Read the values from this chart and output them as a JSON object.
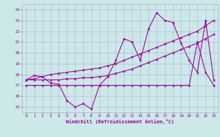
{
  "xlabel": "Windchill (Refroidissement éolien,°C)",
  "bg_color": "#cce8e8",
  "grid_color": "#aaaacc",
  "line_color": "#990099",
  "x_hours": [
    0,
    1,
    2,
    3,
    4,
    5,
    6,
    7,
    8,
    9,
    10,
    11,
    12,
    13,
    14,
    15,
    16,
    17,
    18,
    19,
    20,
    21,
    22,
    23
  ],
  "serA": [
    17.5,
    17.9,
    17.8,
    17.2,
    17.1,
    15.6,
    15.0,
    15.3,
    14.8,
    17.0,
    17.8,
    19.3,
    21.3,
    21.0,
    19.3,
    22.2,
    23.7,
    23.0,
    22.8,
    20.9,
    19.3,
    18.2,
    23.0,
    17.5
  ],
  "serB": [
    17.5,
    17.6,
    17.8,
    18.0,
    18.1,
    18.2,
    18.3,
    18.4,
    18.5,
    18.6,
    18.8,
    19.0,
    19.3,
    19.6,
    19.9,
    20.2,
    20.5,
    20.8,
    21.1,
    21.4,
    21.7,
    22.0,
    22.5,
    23.0
  ],
  "serC": [
    17.5,
    17.5,
    17.5,
    17.5,
    17.5,
    17.6,
    17.6,
    17.7,
    17.7,
    17.8,
    17.9,
    18.1,
    18.3,
    18.5,
    18.8,
    19.1,
    19.4,
    19.7,
    20.0,
    20.3,
    20.6,
    20.9,
    21.3,
    21.7
  ],
  "serD": [
    17.0,
    17.0,
    17.0,
    17.0,
    17.0,
    17.0,
    17.0,
    17.0,
    17.0,
    17.0,
    17.0,
    17.0,
    17.0,
    17.0,
    17.0,
    17.0,
    17.0,
    17.0,
    17.0,
    17.0,
    17.0,
    21.0,
    18.2,
    17.0
  ],
  "ylim": [
    14.5,
    24.5
  ],
  "yticks": [
    15,
    16,
    17,
    18,
    19,
    20,
    21,
    22,
    23,
    24
  ],
  "xlim": [
    -0.5,
    23.5
  ]
}
